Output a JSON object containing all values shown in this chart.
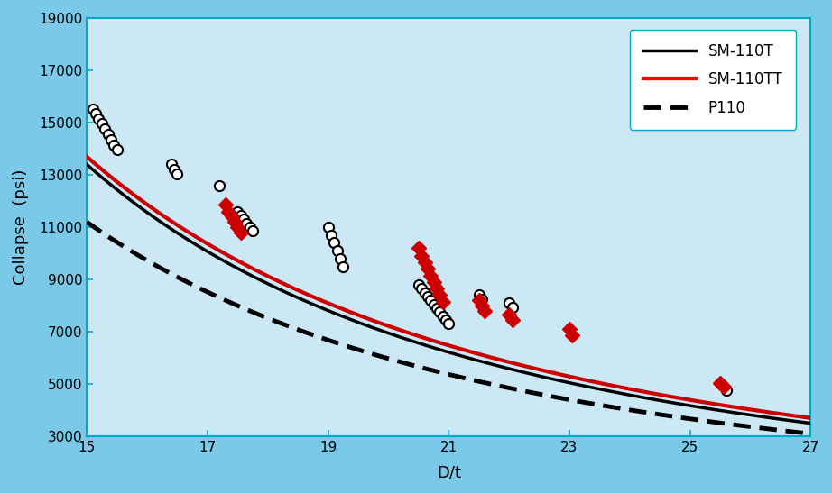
{
  "background_color": "#cce8f4",
  "outer_bg": "#7ac9e8",
  "plot_bg": "#cce8f4",
  "xlim": [
    15,
    27
  ],
  "ylim": [
    3000,
    19000
  ],
  "xticks": [
    15,
    17,
    19,
    21,
    23,
    25,
    27
  ],
  "yticks": [
    3000,
    5000,
    7000,
    9000,
    11000,
    13000,
    15000,
    17000,
    19000
  ],
  "xlabel": "D/t",
  "ylabel": "Collapse  (psi)",
  "sm110t_color": "#000000",
  "sm110tt_color": "#cc0000",
  "p110_color": "#000000",
  "diamond_color": "#cc0000",
  "sm110t_at15": 13400,
  "sm110t_at27": 3500,
  "sm110tt_at15": 13700,
  "sm110tt_at27": 3700,
  "p110_at15": 11200,
  "p110_at27": 3100,
  "circle_data": [
    [
      15.1,
      15500
    ],
    [
      15.15,
      15350
    ],
    [
      15.2,
      15150
    ],
    [
      15.25,
      14950
    ],
    [
      15.3,
      14750
    ],
    [
      15.35,
      14550
    ],
    [
      15.4,
      14350
    ],
    [
      15.45,
      14150
    ],
    [
      15.5,
      13950
    ],
    [
      16.4,
      13400
    ],
    [
      16.45,
      13200
    ],
    [
      16.5,
      13050
    ],
    [
      17.2,
      12600
    ],
    [
      17.5,
      11600
    ],
    [
      17.55,
      11450
    ],
    [
      17.6,
      11300
    ],
    [
      17.65,
      11150
    ],
    [
      17.7,
      11000
    ],
    [
      17.75,
      10850
    ],
    [
      19.0,
      11000
    ],
    [
      19.05,
      10700
    ],
    [
      19.1,
      10400
    ],
    [
      19.15,
      10100
    ],
    [
      19.2,
      9800
    ],
    [
      19.25,
      9500
    ],
    [
      20.5,
      8800
    ],
    [
      20.55,
      8650
    ],
    [
      20.6,
      8500
    ],
    [
      20.65,
      8350
    ],
    [
      20.7,
      8200
    ],
    [
      20.75,
      8050
    ],
    [
      20.8,
      7900
    ],
    [
      20.85,
      7750
    ],
    [
      20.9,
      7600
    ],
    [
      20.95,
      7450
    ],
    [
      21.0,
      7300
    ],
    [
      21.5,
      8400
    ],
    [
      21.55,
      8250
    ],
    [
      22.0,
      8100
    ],
    [
      22.05,
      7950
    ],
    [
      25.6,
      4750
    ]
  ],
  "diamond_data": [
    [
      17.3,
      11850
    ],
    [
      17.35,
      11600
    ],
    [
      17.4,
      11400
    ],
    [
      17.45,
      11200
    ],
    [
      17.5,
      11000
    ],
    [
      17.55,
      10800
    ],
    [
      20.5,
      10200
    ],
    [
      20.55,
      9900
    ],
    [
      20.6,
      9650
    ],
    [
      20.65,
      9400
    ],
    [
      20.7,
      9150
    ],
    [
      20.75,
      8900
    ],
    [
      20.8,
      8650
    ],
    [
      20.85,
      8400
    ],
    [
      20.9,
      8150
    ],
    [
      21.5,
      8200
    ],
    [
      21.55,
      8000
    ],
    [
      21.6,
      7800
    ],
    [
      22.0,
      7650
    ],
    [
      22.05,
      7450
    ],
    [
      23.0,
      7100
    ],
    [
      23.05,
      6850
    ],
    [
      25.5,
      5050
    ],
    [
      25.55,
      4900
    ]
  ]
}
